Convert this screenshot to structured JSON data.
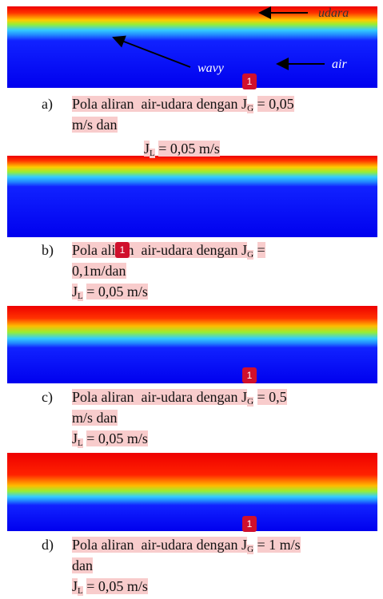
{
  "figures": [
    {
      "label": "a)",
      "text": "Pola aliran  air-udara dengan J",
      "sub": "G",
      "text_after": "= 0,05",
      "line2": "m/s dan",
      "jl": "J",
      "jl_sub": "L",
      "jl_value": "= 0,05 m/s",
      "badge": "1"
    },
    {
      "label": "b)",
      "text": "Pola aliran  air-udara dengan J",
      "sub": "G",
      "text_after": "=",
      "line2": "0,1m/dan",
      "jl": "J",
      "jl_sub": "L",
      "jl_value": "= 0,05 m/s",
      "badge": "1"
    },
    {
      "label": "c)",
      "text": "Pola aliran  air-udara dengan J",
      "sub": "G",
      "text_after": "= 0,5",
      "line2": "m/s dan",
      "jl": "J",
      "jl_sub": "L",
      "jl_value": "= 0,05 m/s",
      "badge": "1"
    },
    {
      "label": "d)",
      "text": "Pola aliran  air-udara dengan J",
      "sub": "G",
      "text_after": "= 1 m/s",
      "line2": "dan",
      "jl": "J",
      "jl_sub": "L",
      "jl_value": "= 0,05 m/s",
      "badge": "1"
    }
  ],
  "annotations": {
    "udara": "udara",
    "wavy": "wavy",
    "air": "air"
  }
}
